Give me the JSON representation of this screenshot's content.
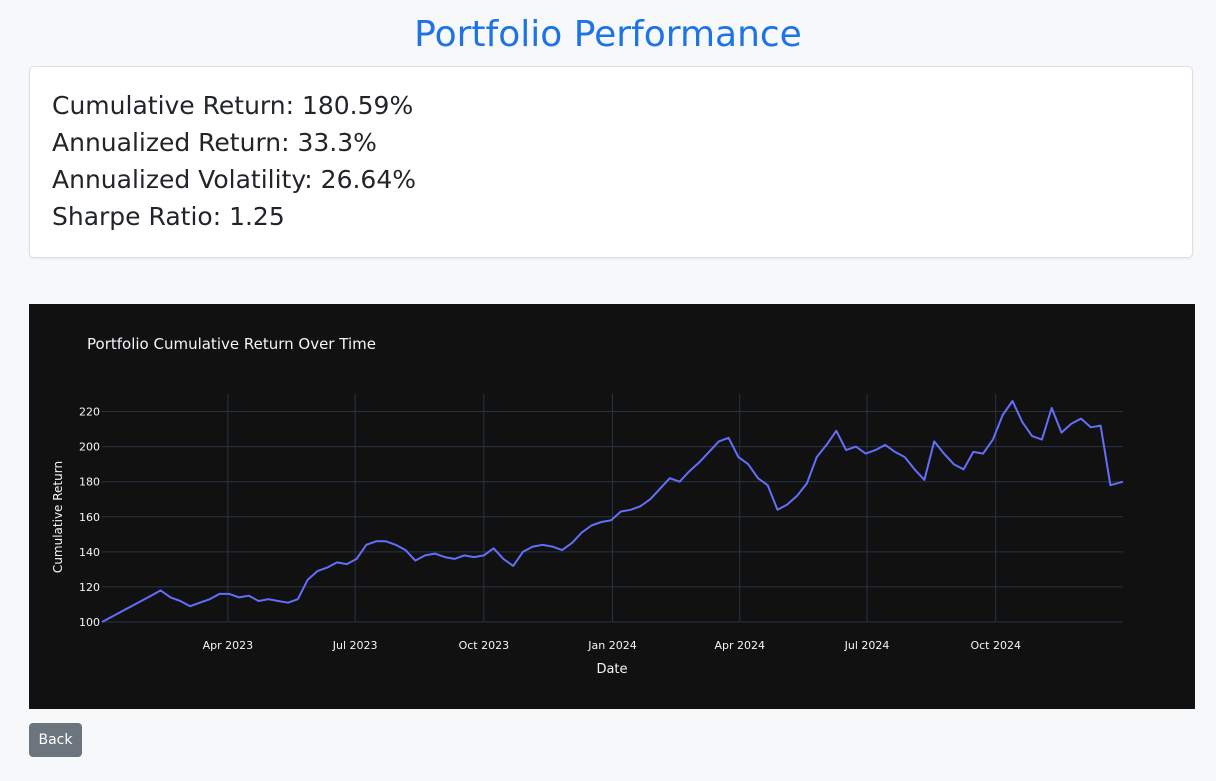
{
  "page": {
    "title": "Portfolio Performance"
  },
  "stats": [
    {
      "label": "Cumulative Return: 180.59%"
    },
    {
      "label": "Annualized Return: 33.3%"
    },
    {
      "label": "Annualized Volatility: 26.64%"
    },
    {
      "label": "Sharpe Ratio: 1.25"
    }
  ],
  "actions": {
    "back_label": "Back"
  },
  "colors": {
    "title": "#1e73e6",
    "chart_bg": "#111111",
    "line": "#636efa",
    "button": "#6c757d"
  },
  "chart_data": {
    "type": "line",
    "title": "Portfolio Cumulative Return Over Time",
    "xlabel": "Date",
    "ylabel": "Cumulative Return",
    "xlim": [
      "2023-01-01",
      "2024-12-31"
    ],
    "ylim": [
      100,
      230
    ],
    "grid": true,
    "x_ticks": [
      {
        "date": "2023-04-01",
        "label": "Apr 2023"
      },
      {
        "date": "2023-07-01",
        "label": "Jul 2023"
      },
      {
        "date": "2023-10-01",
        "label": "Oct 2023"
      },
      {
        "date": "2024-01-01",
        "label": "Jan 2024"
      },
      {
        "date": "2024-04-01",
        "label": "Apr 2024"
      },
      {
        "date": "2024-07-01",
        "label": "Jul 2024"
      },
      {
        "date": "2024-10-01",
        "label": "Oct 2024"
      }
    ],
    "y_ticks": [
      100,
      120,
      140,
      160,
      180,
      200,
      220
    ],
    "series": [
      {
        "x": [
          "2023-01-01",
          "2023-01-08",
          "2023-01-15",
          "2023-01-22",
          "2023-01-29",
          "2023-02-05",
          "2023-02-12",
          "2023-02-19",
          "2023-02-26",
          "2023-03-05",
          "2023-03-12",
          "2023-03-19",
          "2023-03-26",
          "2023-04-02",
          "2023-04-09",
          "2023-04-16",
          "2023-04-23",
          "2023-04-30",
          "2023-05-07",
          "2023-05-14",
          "2023-05-21",
          "2023-05-28",
          "2023-06-04",
          "2023-06-11",
          "2023-06-18",
          "2023-06-25",
          "2023-07-02",
          "2023-07-09",
          "2023-07-16",
          "2023-07-23",
          "2023-07-30",
          "2023-08-06",
          "2023-08-13",
          "2023-08-20",
          "2023-08-27",
          "2023-09-03",
          "2023-09-10",
          "2023-09-17",
          "2023-09-24",
          "2023-10-01",
          "2023-10-08",
          "2023-10-15",
          "2023-10-22",
          "2023-10-29",
          "2023-11-05",
          "2023-11-12",
          "2023-11-19",
          "2023-11-26",
          "2023-12-03",
          "2023-12-10",
          "2023-12-17",
          "2023-12-24",
          "2023-12-31",
          "2024-01-07",
          "2024-01-14",
          "2024-01-21",
          "2024-01-28",
          "2024-02-04",
          "2024-02-11",
          "2024-02-18",
          "2024-02-25",
          "2024-03-03",
          "2024-03-10",
          "2024-03-17",
          "2024-03-24",
          "2024-03-31",
          "2024-04-07",
          "2024-04-14",
          "2024-04-21",
          "2024-04-28",
          "2024-05-05",
          "2024-05-12",
          "2024-05-19",
          "2024-05-26",
          "2024-06-02",
          "2024-06-09",
          "2024-06-16",
          "2024-06-23",
          "2024-06-30",
          "2024-07-07",
          "2024-07-14",
          "2024-07-21",
          "2024-07-28",
          "2024-08-04",
          "2024-08-11",
          "2024-08-18",
          "2024-08-25",
          "2024-09-01",
          "2024-09-08",
          "2024-09-15",
          "2024-09-22",
          "2024-09-29",
          "2024-10-06",
          "2024-10-13",
          "2024-10-20",
          "2024-10-27",
          "2024-11-03",
          "2024-11-10",
          "2024-11-17",
          "2024-11-24",
          "2024-12-01",
          "2024-12-08",
          "2024-12-15",
          "2024-12-22",
          "2024-12-31"
        ],
        "y": [
          100,
          103,
          106,
          109,
          112,
          115,
          118,
          114,
          112,
          109,
          111,
          113,
          116,
          116,
          114,
          115,
          112,
          113,
          112,
          111,
          113,
          124,
          129,
          131,
          134,
          133,
          136,
          144,
          146,
          146,
          144,
          141,
          135,
          138,
          139,
          137,
          136,
          138,
          137,
          138,
          142,
          136,
          132,
          140,
          143,
          144,
          143,
          141,
          145,
          151,
          155,
          157,
          158,
          163,
          164,
          166,
          170,
          176,
          182,
          180,
          186,
          191,
          197,
          203,
          205,
          194,
          190,
          182,
          178,
          164,
          167,
          172,
          179,
          194,
          201,
          209,
          198,
          200,
          196,
          198,
          201,
          197,
          194,
          187,
          181,
          203,
          196,
          190,
          187,
          197,
          196,
          204,
          218,
          226,
          214,
          206,
          204,
          222,
          208,
          213,
          216,
          211,
          212,
          178,
          180
        ]
      }
    ]
  }
}
